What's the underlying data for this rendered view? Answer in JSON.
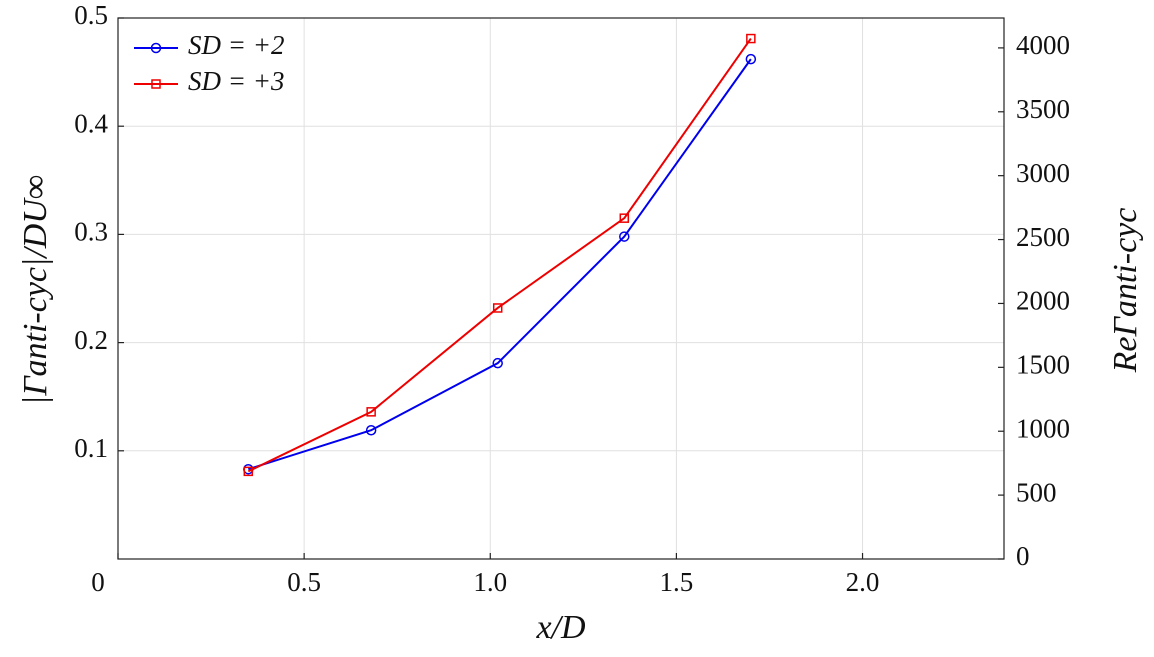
{
  "chart_data": {
    "type": "line",
    "xlabel": "x/D",
    "ylabel": "|Γanti-cyc|/DU∞",
    "y2label": "ReΓanti-cyc",
    "series": [
      {
        "name": "SD = +2",
        "color": "#0000ee",
        "marker": "circle",
        "x": [
          0.35,
          0.68,
          1.02,
          1.36,
          1.7
        ],
        "values": [
          0.083,
          0.119,
          0.181,
          0.298,
          0.462
        ]
      },
      {
        "name": "SD = +3",
        "color": "#ee0000",
        "marker": "square",
        "x": [
          0.35,
          0.68,
          1.02,
          1.36,
          1.7
        ],
        "values": [
          0.081,
          0.136,
          0.232,
          0.315,
          0.481
        ]
      }
    ],
    "xlim": [
      0,
      2.38
    ],
    "xticks": [
      0,
      0.5,
      {
        "value": 1,
        "label": "1.0"
      },
      1.5,
      {
        "value": 2,
        "label": "2.0"
      }
    ],
    "ylim": [
      0,
      0.5
    ],
    "yticks": [
      0.1,
      0.2,
      0.3,
      0.4,
      0.5
    ],
    "y2lim": [
      0,
      4234
    ],
    "y2ticks": [
      0,
      500,
      1000,
      1500,
      2000,
      2500,
      3000,
      3500,
      4000
    ],
    "grid": true,
    "legend": "upper-left"
  }
}
